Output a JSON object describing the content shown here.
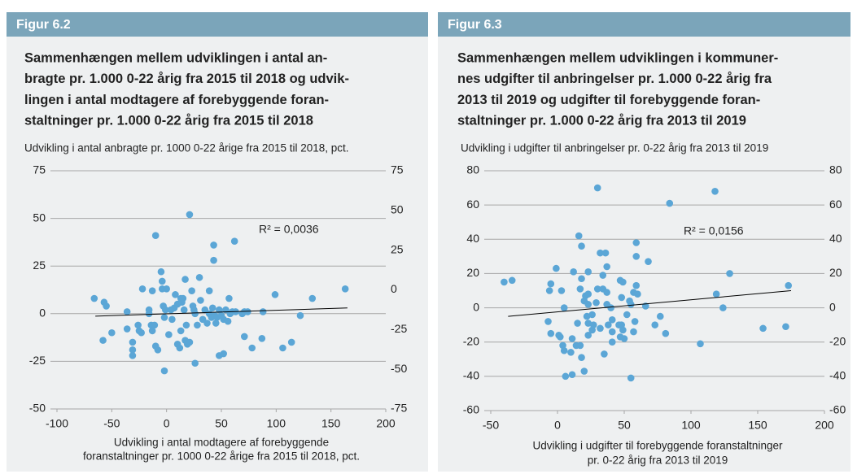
{
  "chart_data": [
    {
      "type": "scatter",
      "figure_label": "Figur 6.2",
      "title": [
        "Sammenhængen mellem udviklingen i antal an-",
        "bragte pr. 1.000 0-22 årig fra 2015 til 2018 og udvik-",
        "lingen i antal modtagere af forebyggende foran-",
        "staltninger pr. 1.000 0-22 årig fra 2015 til 2018"
      ],
      "ylabel": "Udvikling i antal anbragte pr. 1000 0-22 årige fra 2015 til 2018, pct.",
      "xlabel": [
        "Udvikling i antal modtagere af forebyggende",
        "foranstaltninger pr. 1000 0-22 årige fra 2015 til 2018, pct."
      ],
      "color": "#5ba6d6",
      "grid": true,
      "xlim": [
        -100,
        200
      ],
      "xticks": [
        -100,
        -50,
        0,
        50,
        100,
        150,
        200
      ],
      "ylim": [
        -50,
        75
      ],
      "yticks": [
        75,
        50,
        25,
        0,
        -25,
        -50
      ],
      "y2lim": [
        -75,
        75
      ],
      "y2ticks": [
        75,
        50,
        25,
        0,
        -25,
        -50,
        -75
      ],
      "x": [
        -66,
        -57,
        -55,
        -58,
        -50,
        -36,
        -36,
        -31,
        -31,
        -31,
        -25,
        -26,
        -22,
        -23,
        -16,
        -16,
        -14,
        -13,
        -13,
        -11,
        -10,
        -10,
        -8,
        -5,
        -4,
        -4,
        -3,
        -2,
        -2,
        -1,
        0,
        2,
        4,
        5,
        7,
        8,
        10,
        10,
        12,
        13,
        13,
        15,
        14,
        16,
        17,
        18,
        17,
        19,
        21,
        21,
        23,
        24,
        25,
        26,
        26,
        28,
        30,
        31,
        33,
        35,
        37,
        39,
        39,
        41,
        42,
        43,
        43,
        44,
        45,
        46,
        48,
        48,
        50,
        52,
        52,
        54,
        56,
        57,
        58,
        60,
        62,
        63,
        69,
        71,
        71,
        74,
        78,
        87,
        88,
        99,
        106,
        114,
        122,
        133,
        163
      ],
      "values": [
        8,
        6,
        4,
        -14,
        -10,
        1,
        -8,
        -15,
        -19,
        -22,
        -9,
        -6,
        13,
        -10,
        2,
        0,
        -6,
        12,
        -9,
        -6,
        41,
        -17,
        -19,
        22,
        17,
        13,
        4,
        -2,
        -30,
        2,
        13,
        -11,
        2,
        -3,
        3,
        10,
        -16,
        5,
        -18,
        8,
        -9,
        8,
        6,
        2,
        18,
        -6,
        -14,
        -16,
        52,
        -15,
        12,
        4,
        2,
        0,
        -26,
        -6,
        19,
        7,
        -3,
        2,
        -5,
        0,
        12,
        -2,
        3,
        36,
        28,
        -1,
        -5,
        -2,
        2,
        -22,
        -1,
        -21,
        -3,
        2,
        -4,
        8,
        0,
        1,
        38,
        1,
        0,
        -12,
        1,
        1,
        -18,
        -13,
        1,
        10,
        -18,
        -15,
        -1,
        8,
        13
      ],
      "trendline": {
        "x": [
          -65,
          165
        ],
        "values": [
          -1.3,
          3
        ]
      },
      "annotation": "R² = 0,0036"
    },
    {
      "type": "scatter",
      "figure_label": "Figur 6.3",
      "title": [
        "Sammenhængen mellem udviklingen i kommuner-",
        "nes udgifter til anbringelser pr. 1.000 0-22 årig fra",
        "2013 til 2019 og udgifter til forebyggende foran-",
        "staltninger pr. 1.000 0-22 årig fra 2013 til 2019"
      ],
      "ylabel": "Udvikling i udgifter til anbringelser pr. 0-22 årig fra 2013 til 2019",
      "xlabel": [
        "Udvikling i udgifter til forebyggende foranstaltninger",
        "pr. 0-22 årig fra 2013 til 2019"
      ],
      "color": "#5ba6d6",
      "grid": true,
      "xlim": [
        -50,
        200
      ],
      "xticks": [
        -50,
        0,
        50,
        100,
        150,
        200
      ],
      "ylim": [
        -60,
        80
      ],
      "yticks": [
        80,
        60,
        40,
        20,
        0,
        -20,
        -40,
        -60
      ],
      "y2lim": [
        -60,
        80
      ],
      "y2ticks": [
        80,
        60,
        40,
        20,
        0,
        -20,
        -40,
        -60
      ],
      "x": [
        -40,
        -34,
        -7,
        -6,
        -5,
        -5,
        -1,
        1,
        3,
        2,
        4,
        5,
        5,
        6,
        10,
        11,
        11,
        12,
        14,
        15,
        16,
        17,
        17,
        18,
        18,
        18,
        20,
        20,
        21,
        22,
        23,
        23,
        23,
        23,
        23,
        26,
        26,
        27,
        29,
        30,
        30,
        32,
        32,
        34,
        34,
        35,
        36,
        37,
        37,
        37,
        38,
        40,
        41,
        41,
        41,
        46,
        47,
        47,
        48,
        48,
        49,
        49,
        50,
        52,
        55,
        54,
        55,
        57,
        57,
        58,
        59,
        59,
        59,
        60,
        68,
        66,
        73,
        77,
        81,
        84,
        107,
        118,
        119,
        124,
        129,
        154,
        173,
        171
      ],
      "values": [
        15,
        16,
        -8,
        10,
        14,
        -15,
        23,
        -16,
        10,
        -17,
        -22,
        0,
        -25,
        -40,
        -26,
        -18,
        -39,
        21,
        -22,
        -9,
        42,
        11,
        -22,
        36,
        17,
        -29,
        -37,
        4,
        7,
        -5,
        -9,
        -16,
        8,
        21,
        2,
        -4,
        -13,
        -10,
        3,
        70,
        11,
        32,
        -12,
        11,
        19,
        -27,
        32,
        24,
        9,
        2,
        -10,
        0,
        -14,
        -7,
        -20,
        -10,
        16,
        -17,
        6,
        -10,
        15,
        -13,
        -18,
        -4,
        2,
        4,
        -41,
        -14,
        9,
        -8,
        38,
        30,
        13,
        8,
        27,
        1,
        -10,
        -5,
        -15,
        61,
        -21,
        68,
        8,
        0,
        20,
        -12,
        13,
        -11
      ],
      "trendline": {
        "x": [
          -37,
          175
        ],
        "values": [
          -5,
          10
        ]
      },
      "annotation": "R² = 0,0156"
    }
  ]
}
